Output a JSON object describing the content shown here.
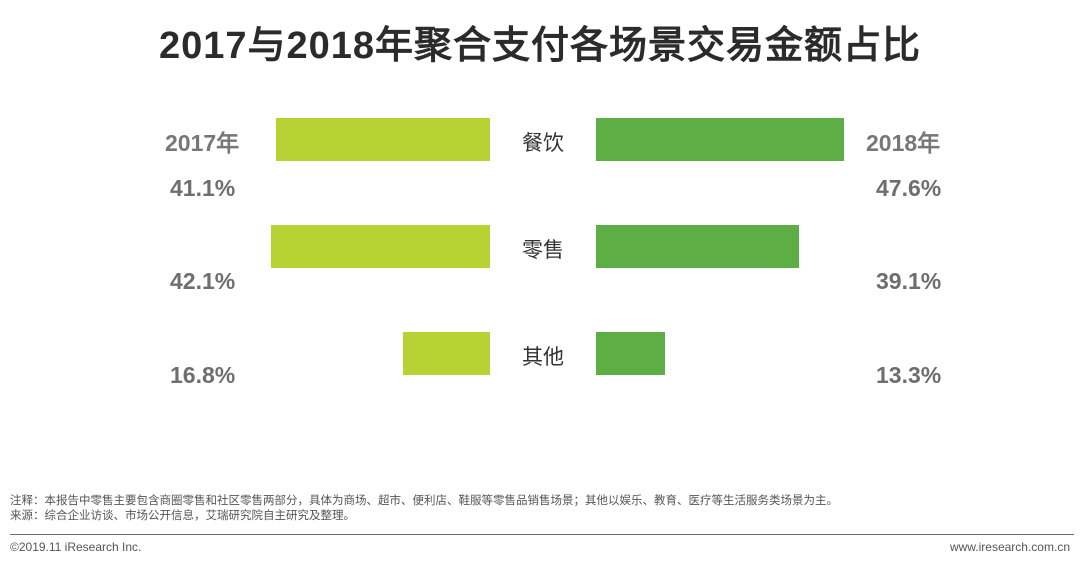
{
  "title": "2017与2018年聚合支付各场景交易金额占比",
  "chart_data": {
    "type": "bar",
    "title": "2017与2018年聚合支付各场景交易金额占比",
    "categories": [
      "餐饮",
      "零售",
      "其他"
    ],
    "series": [
      {
        "name": "2017年",
        "values": [
          41.1,
          42.1,
          16.8
        ],
        "labels": [
          "41.1%",
          "42.1%",
          "16.8%"
        ],
        "color": "#b6d333"
      },
      {
        "name": "2018年",
        "values": [
          47.6,
          39.1,
          13.3
        ],
        "labels": [
          "47.6%",
          "39.1%",
          "13.3%"
        ],
        "color": "#5dae45"
      }
    ],
    "unit": "%",
    "orientation": "horizontal-butterfly",
    "xlim": [
      0,
      50
    ]
  },
  "footnote": {
    "note": "注释：本报告中零售主要包含商圈零售和社区零售两部分，具体为商场、超市、便利店、鞋服等零售品销售场景；其他以娱乐、教育、医疗等生活服务类场景为主。",
    "source": "来源：综合企业访谈、市场公开信息，艾瑞研究院自主研究及整理。"
  },
  "footer": {
    "copyright": "©2019.11 iResearch Inc.",
    "website": "www.iresearch.com.cn"
  }
}
